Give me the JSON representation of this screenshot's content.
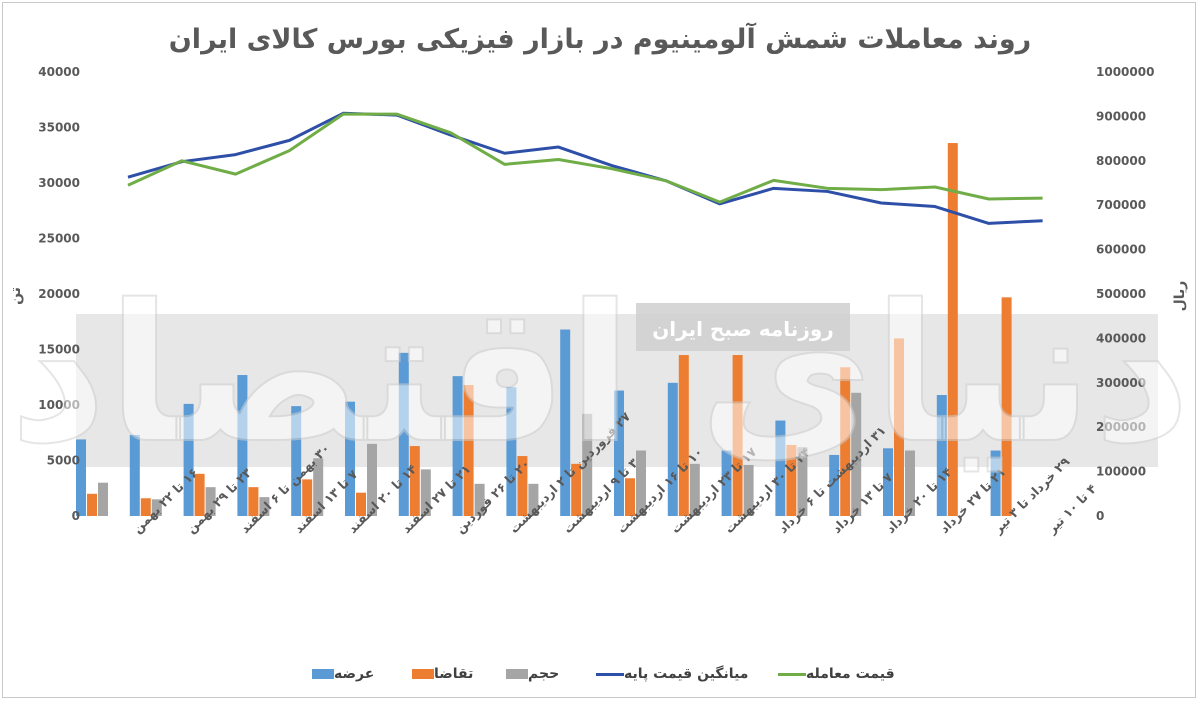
{
  "chart_data": {
    "type": "bar",
    "title": "روند معاملات شمش آلومینیوم در بازار فیزیکی بورس کالای ایران",
    "ylabel_left": "تن",
    "ylabel_right": "ریال",
    "ylim_left": [
      0,
      40000
    ],
    "ylim_right": [
      0,
      1000000
    ],
    "yticks_left": [
      "0",
      "5000",
      "10000",
      "15000",
      "20000",
      "25000",
      "30000",
      "35000",
      "40000"
    ],
    "yticks_right": [
      "0",
      "100000",
      "200000",
      "300000",
      "400000",
      "500000",
      "600000",
      "700000",
      "800000",
      "900000",
      "1000000"
    ],
    "categories": [
      "۱۶ تا ۲۲ بهمن",
      "۲۳ تا ۲۹ بهمن",
      "۳۰ بهمن تا ۶ اسفند",
      "۷ تا ۱۳ اسفند",
      "۱۴ تا ۲۰ اسفند",
      "۲۱ تا ۲۷ اسفند",
      "۲۰ تا ۲۶ فوردین",
      "۲۷ فروردین تا ۲ اردیبهشت",
      "۳ تا ۹ اردیبهشت",
      "۱۰ تا ۱۶ اردیبهشت",
      "۱۷ تا ۲۳ اردیبهشت",
      "۲۴ تا ۳۰ اردیبهشت",
      "۳۱ اردیبهشت تا ۶ خرداد",
      "۷ تا ۱۳ خرداد",
      "۱۴ تا ۲۰ خرداد",
      "۲۱ تا ۲۷ خرداد",
      "۲۹ خرداد تا ۳ تیر",
      "۴ تا ۱۰ تیر"
    ],
    "series": [
      {
        "name": "عرضه",
        "type": "bar",
        "axis": "left",
        "color": "#5b9bd5",
        "values": [
          6900,
          7300,
          10100,
          12700,
          9900,
          10300,
          14700,
          12600,
          11600,
          16800,
          11300,
          12000,
          5900,
          8600,
          5500,
          6100,
          10900,
          5900
        ]
      },
      {
        "name": "تقاضا",
        "type": "bar",
        "axis": "left",
        "color": "#ed7d31",
        "values": [
          2000,
          1600,
          3800,
          2600,
          3300,
          2100,
          6300,
          11800,
          5400,
          4700,
          3400,
          14500,
          14500,
          6400,
          13400,
          16000,
          33600,
          19700
        ]
      },
      {
        "name": "حجم",
        "type": "bar",
        "axis": "left",
        "color": "#a5a5a5",
        "values": [
          3000,
          1500,
          2600,
          1700,
          5200,
          6500,
          4200,
          2900,
          2900,
          9200,
          5900,
          4700,
          4600,
          6200,
          11100,
          5900,
          0,
          0
        ]
      },
      {
        "name": "میانگین قیمت پایه",
        "type": "line",
        "axis": "right",
        "color": "#2e4fa8",
        "values": [
          763000,
          798000,
          814000,
          846000,
          907000,
          903000,
          858000,
          817000,
          831000,
          789000,
          755000,
          703000,
          738000,
          731000,
          705000,
          697000,
          659000,
          665000
        ]
      },
      {
        "name": "قیمت معامله",
        "type": "line",
        "axis": "right",
        "color": "#70ad47",
        "values": [
          745000,
          800000,
          770000,
          823000,
          905000,
          905000,
          863000,
          792000,
          803000,
          782000,
          755000,
          707000,
          756000,
          738000,
          735000,
          741000,
          714000,
          716000
        ]
      }
    ],
    "legend": "bottom",
    "grid": false
  },
  "watermark": {
    "brand": "دنیای اقتصاد",
    "subtitle": "روزنامه صبح ایران"
  }
}
